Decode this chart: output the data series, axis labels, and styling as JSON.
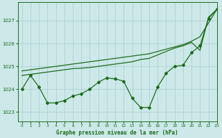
{
  "background_color": "#cce8e8",
  "grid_color": "#aacccc",
  "line_color": "#1a6b1a",
  "title": "Graphe pression niveau de la mer (hPa)",
  "xlim": [
    -0.5,
    23
  ],
  "ylim": [
    1022.6,
    1027.8
  ],
  "yticks": [
    1023,
    1024,
    1025,
    1026,
    1027
  ],
  "xticks": [
    0,
    1,
    2,
    3,
    4,
    5,
    6,
    7,
    8,
    9,
    10,
    11,
    12,
    13,
    14,
    15,
    16,
    17,
    18,
    19,
    20,
    21,
    22,
    23
  ],
  "line_smooth_x": [
    0,
    1,
    2,
    3,
    4,
    5,
    6,
    7,
    8,
    9,
    10,
    11,
    12,
    13,
    14,
    15,
    16,
    17,
    18,
    19,
    20,
    21,
    22,
    23
  ],
  "line_smooth_y": [
    1024.8,
    1024.85,
    1024.9,
    1024.95,
    1025.0,
    1025.05,
    1025.1,
    1025.15,
    1025.2,
    1025.25,
    1025.3,
    1025.35,
    1025.4,
    1025.45,
    1025.5,
    1025.55,
    1025.65,
    1025.75,
    1025.85,
    1025.95,
    1026.1,
    1026.3,
    1026.9,
    1027.5
  ],
  "line_mid_x": [
    0,
    1,
    2,
    3,
    4,
    5,
    6,
    7,
    8,
    9,
    10,
    11,
    12,
    13,
    14,
    15,
    16,
    17,
    18,
    19,
    20,
    21,
    22,
    23
  ],
  "line_mid_y": [
    1024.6,
    1024.65,
    1024.7,
    1024.75,
    1024.8,
    1024.85,
    1024.9,
    1024.92,
    1024.95,
    1025.0,
    1025.05,
    1025.1,
    1025.15,
    1025.2,
    1025.3,
    1025.35,
    1025.5,
    1025.65,
    1025.8,
    1025.9,
    1026.05,
    1025.7,
    1027.15,
    1027.5
  ],
  "line_zigzag_x": [
    0,
    1,
    2,
    3,
    4,
    5,
    6,
    7,
    8,
    9,
    10,
    11,
    12,
    13,
    14,
    15,
    16,
    17,
    18,
    19,
    20,
    21,
    22,
    23
  ],
  "line_zigzag_y": [
    1024.0,
    1024.6,
    1024.1,
    1023.4,
    1023.4,
    1023.5,
    1023.7,
    1023.8,
    1024.0,
    1024.3,
    1024.5,
    1024.45,
    1024.35,
    1023.6,
    1023.2,
    1023.2,
    1024.1,
    1024.7,
    1025.0,
    1025.05,
    1025.6,
    1025.9,
    1027.1,
    1027.5
  ]
}
